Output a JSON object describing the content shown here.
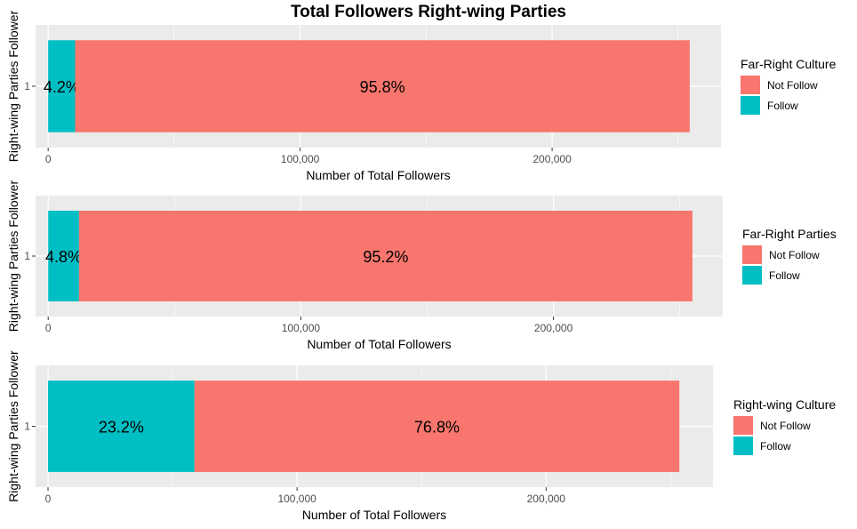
{
  "title": "Total Followers Right-wing Parties",
  "colors": {
    "not_follow": "#F8766D",
    "follow": "#00BFC4",
    "panel_bg": "#EBEBEB",
    "grid": "#FFFFFF"
  },
  "chart_data": [
    {
      "type": "bar",
      "orientation": "horizontal",
      "stacked": true,
      "categories": [
        "1"
      ],
      "series": [
        {
          "name": "Follow",
          "values": [
            10700
          ],
          "label": "4.2%"
        },
        {
          "name": "Not Follow",
          "values": [
            243900
          ],
          "label": "95.8%"
        }
      ],
      "xlabel": "Number of Total Followers",
      "ylabel": "Right-wing Parties Follower",
      "x_ticks": [
        0,
        100000,
        200000
      ],
      "x_tick_labels": [
        "0",
        "100,000",
        "200,000"
      ],
      "xlim": [
        -5000,
        267000
      ],
      "grid": true,
      "legend": {
        "title": "Far-Right Culture",
        "placement": "right",
        "items": [
          "Not Follow",
          "Follow"
        ]
      }
    },
    {
      "type": "bar",
      "orientation": "horizontal",
      "stacked": true,
      "categories": [
        "1"
      ],
      "series": [
        {
          "name": "Follow",
          "values": [
            12200
          ],
          "label": "4.8%"
        },
        {
          "name": "Not Follow",
          "values": [
            242800
          ],
          "label": "95.2%"
        }
      ],
      "xlabel": "Number of Total Followers",
      "ylabel": "Right-wing Parties Follower",
      "x_ticks": [
        0,
        100000,
        200000
      ],
      "x_tick_labels": [
        "0",
        "100,000",
        "200,000"
      ],
      "xlim": [
        -5000,
        267000
      ],
      "grid": true,
      "legend": {
        "title": "Far-Right Parties",
        "placement": "right",
        "items": [
          "Not Follow",
          "Follow"
        ]
      }
    },
    {
      "type": "bar",
      "orientation": "horizontal",
      "stacked": true,
      "categories": [
        "1"
      ],
      "series": [
        {
          "name": "Follow",
          "values": [
            58800
          ],
          "label": "23.2%"
        },
        {
          "name": "Not Follow",
          "values": [
            194700
          ],
          "label": "76.8%"
        }
      ],
      "xlabel": "Number of Total Followers",
      "ylabel": "Right-wing Parties Follower",
      "x_ticks": [
        0,
        100000,
        200000
      ],
      "x_tick_labels": [
        "0",
        "100,000",
        "200,000"
      ],
      "xlim": [
        -5000,
        267000
      ],
      "grid": true,
      "legend": {
        "title": "Right-wing Culture",
        "placement": "right",
        "items": [
          "Not Follow",
          "Follow"
        ]
      }
    }
  ]
}
